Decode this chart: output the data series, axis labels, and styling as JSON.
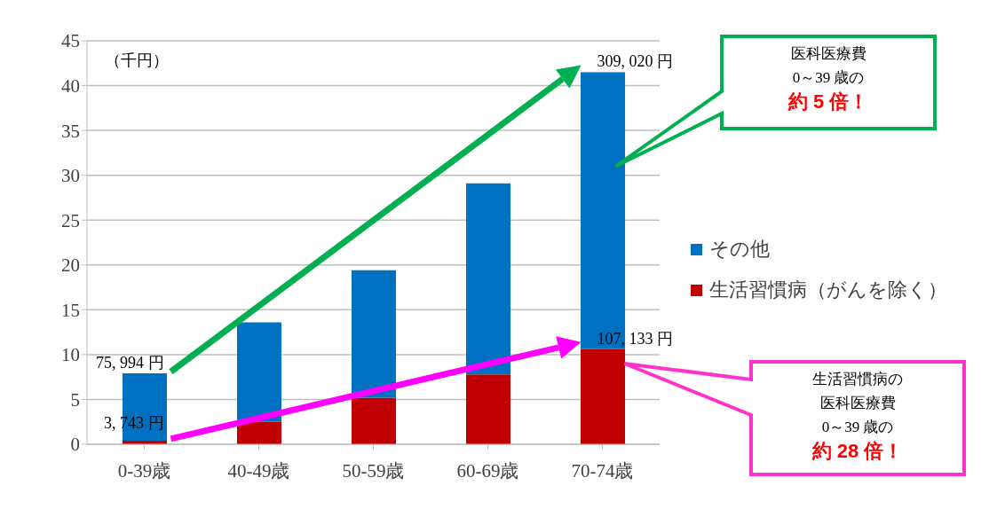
{
  "chart_data": {
    "type": "bar",
    "stacked": true,
    "ylabel": "（千円）",
    "categories": [
      "0-39歳",
      "40-49歳",
      "50-59歳",
      "60-69歳",
      "70-74歳"
    ],
    "series": [
      {
        "name": "生活習慣病（がんを除く）",
        "color": "#c00000",
        "values": [
          0.4,
          2.5,
          5.2,
          7.8,
          10.6
        ]
      },
      {
        "name": "その他",
        "color": "#0070c0",
        "values": [
          7.5,
          11.1,
          14.2,
          21.3,
          30.9
        ]
      }
    ],
    "ylim": [
      0,
      45
    ],
    "yticks": [
      0,
      5,
      10,
      15,
      20,
      25,
      30,
      35,
      40,
      45
    ],
    "grid": "y",
    "legend": "right",
    "annotations": [
      {
        "text": "75, 994 円",
        "x": "0-39歳",
        "y": 7.9
      },
      {
        "text": "3, 743 円",
        "x": "0-39歳",
        "y": 0.4
      },
      {
        "text": "309, 020 円",
        "x": "70-74歳",
        "y": 41.5
      },
      {
        "text": "107, 133 円",
        "x": "70-74歳",
        "y": 10.6
      },
      "医科医療費",
      "0～39 歳の",
      "約 5 倍！",
      "生活習慣病の",
      "医科医療費",
      "0～39 歳の",
      "約 28 倍！"
    ]
  }
}
